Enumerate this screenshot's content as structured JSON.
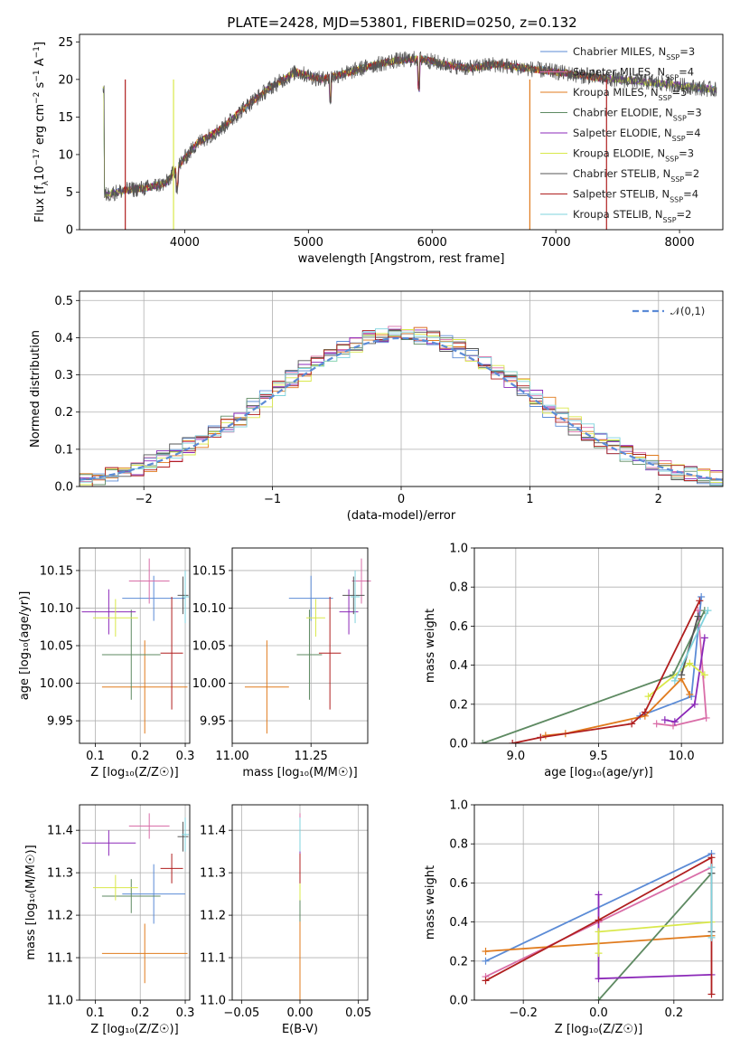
{
  "figure_title": "PLATE=2428, MJD=53801, FIBERID=0250, z=0.132",
  "colors": {
    "chabrier_miles": "#5b8bd6",
    "salpeter_miles": "#d96ea8",
    "kroupa_miles": "#e07b1e",
    "chabrier_elodie": "#5e8a62",
    "salpeter_elodie": "#8b28b8",
    "kroupa_elodie": "#d9e84a",
    "chabrier_stelib": "#555555",
    "salpeter_stelib": "#b01f1f",
    "kroupa_stelib": "#7fd3dd",
    "normal_curve": "#5b8bd6"
  },
  "chart_data": [
    {
      "id": "spectrum",
      "type": "line",
      "title": "PLATE=2428, MJD=53801, FIBERID=0250, z=0.132",
      "xlabel": "wavelength [Angstrom, rest frame]",
      "ylabel": "Flux [f_λ 10^-17 erg cm^-2 s^-1 A^-1]",
      "xlim": [
        3150,
        8350
      ],
      "ylim": [
        0,
        26
      ],
      "xticks": [
        4000,
        5000,
        6000,
        7000,
        8000
      ],
      "yticks": [
        0,
        5,
        10,
        15,
        20,
        25
      ],
      "grid": false,
      "legend_position": "right",
      "continuum_anchors": {
        "wavelength": [
          3350,
          3500,
          3700,
          3850,
          3950,
          4100,
          4300,
          4500,
          4700,
          4900,
          5100,
          5300,
          5500,
          5700,
          5900,
          6100,
          6300,
          6500,
          6700,
          7000,
          7300,
          7500,
          7900,
          8300
        ],
        "flux": [
          4.6,
          5.2,
          5.6,
          6.2,
          8.5,
          11.5,
          13.5,
          16.5,
          19.0,
          21.0,
          20.0,
          20.8,
          21.8,
          22.5,
          22.8,
          22.0,
          21.5,
          22.0,
          21.6,
          21.0,
          20.3,
          20.0,
          19.4,
          18.6
        ]
      },
      "series": [
        {
          "name": "Chabrier MILES",
          "nssp": "3",
          "color_key": "chabrier_miles"
        },
        {
          "name": "Salpeter MILES",
          "nssp": "4",
          "color_key": "salpeter_miles"
        },
        {
          "name": "Kroupa MILES",
          "nssp": "5",
          "color_key": "kroupa_miles"
        },
        {
          "name": "Chabrier ELODIE",
          "nssp": "3",
          "color_key": "chabrier_elodie"
        },
        {
          "name": "Salpeter ELODIE",
          "nssp": "4",
          "color_key": "salpeter_elodie"
        },
        {
          "name": "Kroupa ELODIE",
          "nssp": "3",
          "color_key": "kroupa_elodie"
        },
        {
          "name": "Chabrier STELIB",
          "nssp": "2",
          "color_key": "chabrier_stelib"
        },
        {
          "name": "Salpeter STELIB",
          "nssp": "4",
          "color_key": "salpeter_stelib"
        },
        {
          "name": "Kroupa STELIB",
          "nssp": "2",
          "color_key": "kroupa_stelib"
        }
      ]
    },
    {
      "id": "residuals",
      "type": "line",
      "xlabel": "(data-model)/error",
      "ylabel": "Normed distribution",
      "xlim": [
        -2.5,
        2.5
      ],
      "ylim": [
        0,
        0.525
      ],
      "xticks": [
        -2,
        -1,
        0,
        1,
        2
      ],
      "yticks": [
        0.0,
        0.1,
        0.2,
        0.3,
        0.4,
        0.5
      ],
      "grid": true,
      "legend": "𝒩(0,1)",
      "legend_position": "top-right",
      "bin_width": 0.1
    },
    {
      "id": "age-z",
      "type": "scatter",
      "xlabel": "Z [log10(Z/Z⊙)]",
      "ylabel": "age [log10(age/yr)]",
      "xlim": [
        0.065,
        0.31
      ],
      "ylim": [
        9.92,
        10.18
      ],
      "xticks": [
        0.1,
        0.2,
        0.3
      ],
      "yticks": [
        9.95,
        10.0,
        10.05,
        10.1,
        10.15
      ],
      "grid": true,
      "points": [
        {
          "key": "chabrier_miles",
          "x": 0.23,
          "y": 10.113,
          "xerr": 0.07,
          "yerr": 0.03
        },
        {
          "key": "salpeter_miles",
          "x": 0.22,
          "y": 10.136,
          "xerr": 0.045,
          "yerr": 0.03
        },
        {
          "key": "kroupa_miles",
          "x": 0.21,
          "y": 9.995,
          "xerr": 0.095,
          "yerr": 0.062
        },
        {
          "key": "chabrier_elodie",
          "x": 0.18,
          "y": 10.038,
          "xerr": 0.065,
          "yerr": 0.06
        },
        {
          "key": "salpeter_elodie",
          "x": 0.13,
          "y": 10.095,
          "xerr": 0.06,
          "yerr": 0.03
        },
        {
          "key": "kroupa_elodie",
          "x": 0.145,
          "y": 10.087,
          "xerr": 0.05,
          "yerr": 0.025
        },
        {
          "key": "chabrier_stelib",
          "x": 0.295,
          "y": 10.117,
          "xerr": 0.012,
          "yerr": 0.025
        },
        {
          "key": "salpeter_stelib",
          "x": 0.27,
          "y": 10.04,
          "xerr": 0.025,
          "yerr": 0.075
        },
        {
          "key": "kroupa_stelib",
          "x": 0.3,
          "y": 10.115,
          "xerr": 0.008,
          "yerr": 0.035
        }
      ]
    },
    {
      "id": "age-mass",
      "type": "scatter",
      "xlabel": "mass [log10(M/M⊙)]",
      "xlim": [
        11.0,
        11.43
      ],
      "ylim": [
        9.92,
        10.18
      ],
      "xticks": [
        11.0,
        11.25
      ],
      "yticks": [
        9.95,
        10.0,
        10.05,
        10.1,
        10.15
      ],
      "grid": true,
      "points": [
        {
          "key": "chabrier_miles",
          "x": 11.25,
          "y": 10.113,
          "xerr": 0.07,
          "yerr": 0.03
        },
        {
          "key": "salpeter_miles",
          "x": 11.41,
          "y": 10.136,
          "xerr": 0.03,
          "yerr": 0.03
        },
        {
          "key": "kroupa_miles",
          "x": 11.11,
          "y": 9.995,
          "xerr": 0.07,
          "yerr": 0.062
        },
        {
          "key": "chabrier_elodie",
          "x": 11.245,
          "y": 10.038,
          "xerr": 0.04,
          "yerr": 0.06
        },
        {
          "key": "salpeter_elodie",
          "x": 11.37,
          "y": 10.095,
          "xerr": 0.03,
          "yerr": 0.03
        },
        {
          "key": "kroupa_elodie",
          "x": 11.265,
          "y": 10.087,
          "xerr": 0.03,
          "yerr": 0.025
        },
        {
          "key": "chabrier_stelib",
          "x": 11.385,
          "y": 10.117,
          "xerr": 0.035,
          "yerr": 0.025
        },
        {
          "key": "salpeter_stelib",
          "x": 11.31,
          "y": 10.04,
          "xerr": 0.035,
          "yerr": 0.075
        },
        {
          "key": "kroupa_stelib",
          "x": 11.39,
          "y": 10.115,
          "xerr": 0.015,
          "yerr": 0.035
        }
      ]
    },
    {
      "id": "weight-age",
      "type": "line",
      "xlabel": "age [log10(age/yr)]",
      "ylabel": "mass weight",
      "xlim": [
        8.75,
        10.25
      ],
      "ylim": [
        0,
        1
      ],
      "xticks": [
        9.0,
        9.5,
        10.0
      ],
      "yticks": [
        0.0,
        0.2,
        0.4,
        0.6,
        0.8,
        1.0
      ],
      "grid": true,
      "series": [
        {
          "key": "chabrier_miles",
          "points": [
            [
              9.75,
              0.14
            ],
            [
              10.06,
              0.24
            ],
            [
              10.12,
              0.75
            ]
          ]
        },
        {
          "key": "salpeter_miles",
          "points": [
            [
              9.85,
              0.1
            ],
            [
              9.95,
              0.09
            ],
            [
              10.15,
              0.13
            ],
            [
              10.1,
              0.68
            ]
          ]
        },
        {
          "key": "kroupa_miles",
          "points": [
            [
              9.18,
              0.04
            ],
            [
              9.3,
              0.05
            ],
            [
              9.78,
              0.14
            ],
            [
              10.0,
              0.33
            ],
            [
              10.05,
              0.25
            ]
          ]
        },
        {
          "key": "chabrier_elodie",
          "points": [
            [
              8.8,
              0.0
            ],
            [
              9.95,
              0.35
            ],
            [
              10.14,
              0.68
            ]
          ]
        },
        {
          "key": "salpeter_elodie",
          "points": [
            [
              9.9,
              0.12
            ],
            [
              9.96,
              0.11
            ],
            [
              10.08,
              0.2
            ],
            [
              10.14,
              0.54
            ]
          ]
        },
        {
          "key": "kroupa_elodie",
          "points": [
            [
              9.8,
              0.24
            ],
            [
              10.05,
              0.41
            ],
            [
              10.14,
              0.35
            ]
          ]
        },
        {
          "key": "chabrier_stelib",
          "points": [
            [
              10.0,
              0.35
            ],
            [
              10.1,
              0.65
            ]
          ]
        },
        {
          "key": "salpeter_stelib",
          "points": [
            [
              8.98,
              0.0
            ],
            [
              9.15,
              0.03
            ],
            [
              9.7,
              0.1
            ],
            [
              9.78,
              0.16
            ],
            [
              10.11,
              0.73
            ]
          ]
        },
        {
          "key": "kroupa_stelib",
          "points": [
            [
              9.96,
              0.32
            ],
            [
              10.16,
              0.68
            ]
          ]
        }
      ]
    },
    {
      "id": "mass-z",
      "type": "scatter",
      "xlabel": "Z [log10(Z/Z⊙)]",
      "ylabel": "mass [log10(M/M⊙)]",
      "xlim": [
        0.065,
        0.31
      ],
      "ylim": [
        11.0,
        11.46
      ],
      "xticks": [
        0.1,
        0.2,
        0.3
      ],
      "yticks": [
        11.0,
        11.1,
        11.2,
        11.3,
        11.4
      ],
      "grid": true,
      "points": [
        {
          "key": "chabrier_miles",
          "x": 0.23,
          "y": 11.25,
          "xerr": 0.07,
          "yerr": 0.07
        },
        {
          "key": "salpeter_miles",
          "x": 0.22,
          "y": 11.41,
          "xerr": 0.045,
          "yerr": 0.03
        },
        {
          "key": "kroupa_miles",
          "x": 0.21,
          "y": 11.11,
          "xerr": 0.095,
          "yerr": 0.07
        },
        {
          "key": "chabrier_elodie",
          "x": 0.18,
          "y": 11.245,
          "xerr": 0.065,
          "yerr": 0.04
        },
        {
          "key": "salpeter_elodie",
          "x": 0.13,
          "y": 11.37,
          "xerr": 0.06,
          "yerr": 0.03
        },
        {
          "key": "kroupa_elodie",
          "x": 0.145,
          "y": 11.265,
          "xerr": 0.05,
          "yerr": 0.03
        },
        {
          "key": "chabrier_stelib",
          "x": 0.295,
          "y": 11.385,
          "xerr": 0.012,
          "yerr": 0.035
        },
        {
          "key": "salpeter_stelib",
          "x": 0.27,
          "y": 11.31,
          "xerr": 0.025,
          "yerr": 0.035
        },
        {
          "key": "kroupa_stelib",
          "x": 0.3,
          "y": 11.39,
          "xerr": 0.008,
          "yerr": 0.04
        }
      ]
    },
    {
      "id": "mass-ebv",
      "type": "scatter",
      "xlabel": "E(B-V)",
      "xlim": [
        -0.058,
        0.058
      ],
      "ylim": [
        11.0,
        11.46
      ],
      "xticks": [
        -0.05,
        0.0,
        0.05
      ],
      "yticks": [
        11.0,
        11.1,
        11.2,
        11.3,
        11.4
      ],
      "grid": true,
      "points": [
        {
          "key": "chabrier_miles",
          "x": 0.0,
          "y": 11.25,
          "xerr": 0,
          "yerr": 0.07
        },
        {
          "key": "salpeter_miles",
          "x": 0.0,
          "y": 11.41,
          "xerr": 0,
          "yerr": 0.03
        },
        {
          "key": "kroupa_miles",
          "x": 0.0,
          "y": 11.11,
          "xerr": 0,
          "yerr": 0.11
        },
        {
          "key": "chabrier_elodie",
          "x": 0.0,
          "y": 11.245,
          "xerr": 0,
          "yerr": 0.06
        },
        {
          "key": "salpeter_elodie",
          "x": 0.0,
          "y": 11.37,
          "xerr": 0,
          "yerr": 0.03
        },
        {
          "key": "kroupa_elodie",
          "x": 0.0,
          "y": 11.265,
          "xerr": 0,
          "yerr": 0.03
        },
        {
          "key": "chabrier_stelib",
          "x": 0.0,
          "y": 11.385,
          "xerr": 0,
          "yerr": 0.035
        },
        {
          "key": "salpeter_stelib",
          "x": 0.0,
          "y": 11.31,
          "xerr": 0,
          "yerr": 0.035
        },
        {
          "key": "kroupa_stelib",
          "x": 0.0,
          "y": 11.39,
          "xerr": 0,
          "yerr": 0.04
        }
      ]
    },
    {
      "id": "weight-z",
      "type": "line",
      "xlabel": "Z [log10(Z/Z⊙)]",
      "ylabel": "mass weight",
      "xlim": [
        -0.33,
        0.33
      ],
      "ylim": [
        0,
        1
      ],
      "xticks": [
        -0.2,
        0.0,
        0.2
      ],
      "yticks": [
        0.0,
        0.2,
        0.4,
        0.6,
        0.8,
        1.0
      ],
      "grid": true,
      "series": [
        {
          "key": "chabrier_miles",
          "points": [
            [
              -0.3,
              0.2
            ],
            [
              0.3,
              0.75
            ]
          ]
        },
        {
          "key": "salpeter_miles",
          "points": [
            [
              -0.3,
              0.12
            ],
            [
              0.0,
              0.4
            ],
            [
              0.3,
              0.68
            ]
          ]
        },
        {
          "key": "kroupa_miles",
          "points": [
            [
              -0.3,
              0.25
            ],
            [
              0.3,
              0.33
            ]
          ]
        },
        {
          "key": "chabrier_elodie",
          "points": [
            [
              0.0,
              0.0
            ],
            [
              0.3,
              0.65
            ]
          ]
        },
        {
          "key": "salpeter_elodie",
          "points": [
            [
              0.0,
              0.54
            ],
            [
              0.0,
              0.11
            ],
            [
              0.3,
              0.13
            ]
          ]
        },
        {
          "key": "kroupa_elodie",
          "points": [
            [
              0.0,
              0.24
            ],
            [
              0.0,
              0.35
            ],
            [
              0.3,
              0.4
            ]
          ]
        },
        {
          "key": "chabrier_stelib",
          "points": [
            [
              0.3,
              0.35
            ],
            [
              0.3,
              0.65
            ]
          ]
        },
        {
          "key": "salpeter_stelib",
          "points": [
            [
              -0.3,
              0.1
            ],
            [
              0.0,
              0.41
            ],
            [
              0.3,
              0.73
            ],
            [
              0.3,
              0.03
            ]
          ]
        },
        {
          "key": "kroupa_stelib",
          "points": [
            [
              0.3,
              0.32
            ],
            [
              0.3,
              0.68
            ]
          ]
        }
      ]
    }
  ]
}
